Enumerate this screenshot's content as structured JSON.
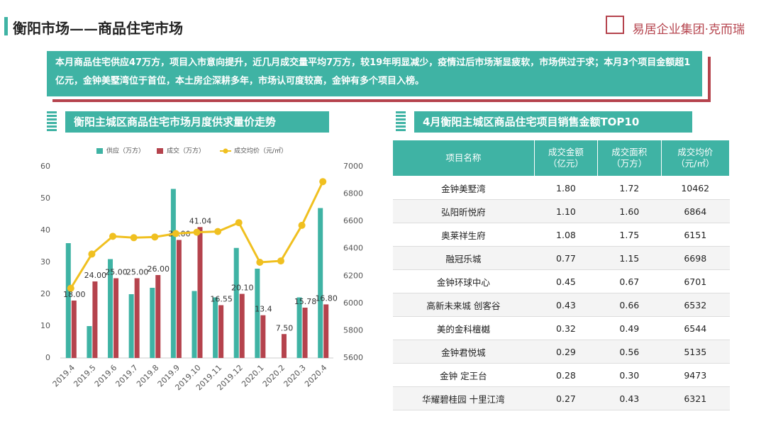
{
  "header": {
    "title": "衡阳市场——商品住宅市场",
    "logo": "易居企业集团·克而瑞"
  },
  "summary": "本月商品住宅供应47万方，项目入市意向提升，近几月成交量平均7万方，较19年明显减少，疫情过后市场渐显疲软，市场供过于求；本月3个项目金额超1亿元，金钟美墅湾位于首位，本土房企深耕多年，市场认可度较高，金钟有多个项目入榜。",
  "chart_data": {
    "type": "bar",
    "title": "衡阳主城区商品住宅市场月度供求量价走势",
    "categories": [
      "2019.4",
      "2019.5",
      "2019.6",
      "2019.7",
      "2019.8",
      "2019.9",
      "2019.10",
      "2019.11",
      "2019.12",
      "2020.1",
      "2020.2",
      "2020.3",
      "2020.4"
    ],
    "series": [
      {
        "name": "供应（万方）",
        "color": "#3fb3a4",
        "values": [
          36,
          10,
          31,
          20,
          22,
          53,
          21,
          19,
          34.5,
          28,
          null,
          19,
          47
        ]
      },
      {
        "name": "成交（万方）",
        "color": "#b5434d",
        "values": [
          18,
          24,
          25,
          25,
          26,
          37,
          41.04,
          16.55,
          20.1,
          13.4,
          7.5,
          15.78,
          16.8
        ],
        "value_labels": [
          "18.00",
          "24.00",
          "25.00",
          "25.00",
          "26.00",
          "37.00",
          "41.04",
          "16.55",
          "20.10",
          "13.4",
          "7.50",
          "15.78",
          "16.80"
        ]
      },
      {
        "name": "成交均价（元/㎡）",
        "color": "#f0c020",
        "type": "line",
        "axis": "y2",
        "values": [
          6110,
          6360,
          6490,
          6480,
          6485,
          6510,
          6520,
          6525,
          6590,
          6300,
          6310,
          6570,
          6890
        ]
      }
    ],
    "ylim": [
      0,
      60
    ],
    "yticks": [
      0,
      10,
      20,
      30,
      40,
      50,
      60
    ],
    "y2lim": [
      5600,
      7000
    ],
    "y2ticks": [
      5600,
      5800,
      6000,
      6200,
      6400,
      6600,
      6800,
      7000
    ],
    "legend": "top"
  },
  "table": {
    "title": "4月衡阳主城区商品住宅项目销售金额TOP10",
    "columns": [
      "项目名称",
      "成交金额\n（亿元）",
      "成交面积\n（万方）",
      "成交均价\n（元/㎡）"
    ],
    "rows": [
      [
        "金钟美墅湾",
        "1.80",
        "1.72",
        "10462"
      ],
      [
        "弘阳昕悦府",
        "1.10",
        "1.60",
        "6864"
      ],
      [
        "奥莱祥生府",
        "1.08",
        "1.75",
        "6151"
      ],
      [
        "融冠乐城",
        "0.77",
        "1.15",
        "6698"
      ],
      [
        "金钟环球中心",
        "0.45",
        "0.67",
        "6701"
      ],
      [
        "高新未来城 创客谷",
        "0.43",
        "0.66",
        "6532"
      ],
      [
        "美的金科檀樾",
        "0.32",
        "0.49",
        "6544"
      ],
      [
        "金钟君悦城",
        "0.29",
        "0.56",
        "5135"
      ],
      [
        "金钟 定王台",
        "0.28",
        "0.30",
        "9473"
      ],
      [
        "华耀碧桂园 十里江湾",
        "0.27",
        "0.43",
        "6321"
      ]
    ]
  }
}
